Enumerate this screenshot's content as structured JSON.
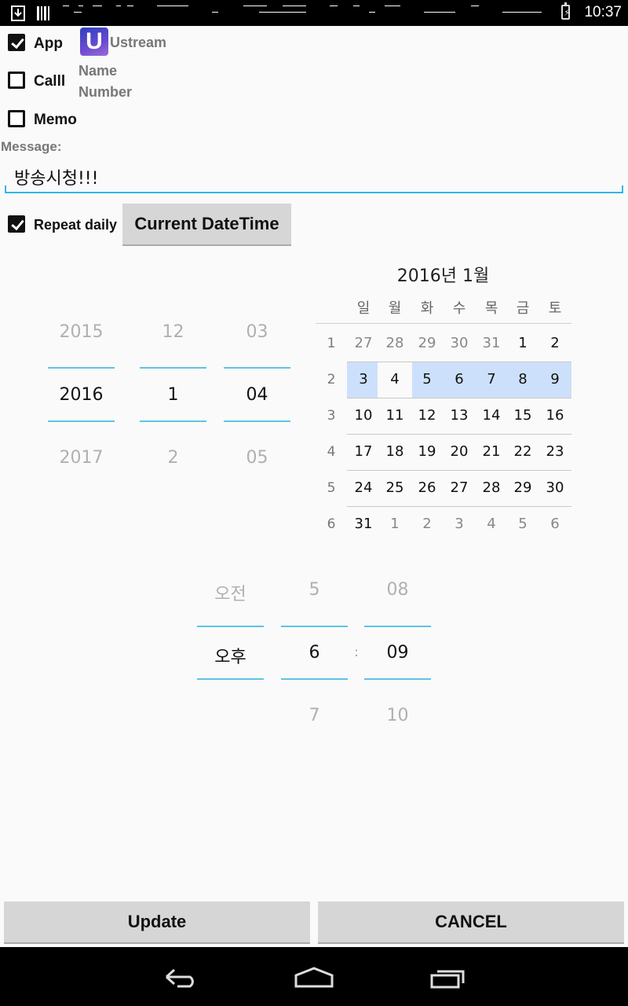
{
  "status_bar": {
    "time": "10:37"
  },
  "options": {
    "app": {
      "label": "App",
      "checked": true,
      "app_name": "Ustream",
      "icon": "ustream-icon"
    },
    "call": {
      "label": "Calll",
      "checked": false,
      "name_label": "Name",
      "number_label": "Number"
    },
    "memo": {
      "label": "Memo",
      "checked": false
    }
  },
  "message": {
    "label": "Message:",
    "value": "방송시청!!!"
  },
  "repeat": {
    "label": "Repeat daily",
    "checked": true
  },
  "current_datetime_button": "Current DateTime",
  "date_picker": {
    "year": {
      "prev": "2015",
      "current": "2016",
      "next": "2017"
    },
    "month": {
      "prev": "12",
      "current": "1",
      "next": "2"
    },
    "day": {
      "prev": "03",
      "current": "04",
      "next": "05"
    }
  },
  "calendar": {
    "title": "2016년 1월",
    "weekdays": [
      "일",
      "월",
      "화",
      "수",
      "목",
      "금",
      "토"
    ],
    "weeks": [
      {
        "num": "1",
        "days": [
          "27",
          "28",
          "29",
          "30",
          "31",
          "1",
          "2"
        ]
      },
      {
        "num": "2",
        "days": [
          "3",
          "4",
          "5",
          "6",
          "7",
          "8",
          "9"
        ]
      },
      {
        "num": "3",
        "days": [
          "10",
          "11",
          "12",
          "13",
          "14",
          "15",
          "16"
        ]
      },
      {
        "num": "4",
        "days": [
          "17",
          "18",
          "19",
          "20",
          "21",
          "22",
          "23"
        ]
      },
      {
        "num": "5",
        "days": [
          "24",
          "25",
          "26",
          "27",
          "28",
          "29",
          "30"
        ]
      },
      {
        "num": "6",
        "days": [
          "31",
          "1",
          "2",
          "3",
          "4",
          "5",
          "6"
        ]
      }
    ],
    "selected_day": "4"
  },
  "time_picker": {
    "ampm": {
      "prev": "오전",
      "current": "오후"
    },
    "hour": {
      "prev": "5",
      "current": "6",
      "next": "7"
    },
    "separator": ":",
    "minute": {
      "prev": "08",
      "current": "09",
      "next": "10"
    }
  },
  "buttons": {
    "update": "Update",
    "cancel": "CANCEL"
  },
  "nav_bar": {
    "back": "back-icon",
    "home": "home-icon",
    "recents": "recents-icon"
  }
}
